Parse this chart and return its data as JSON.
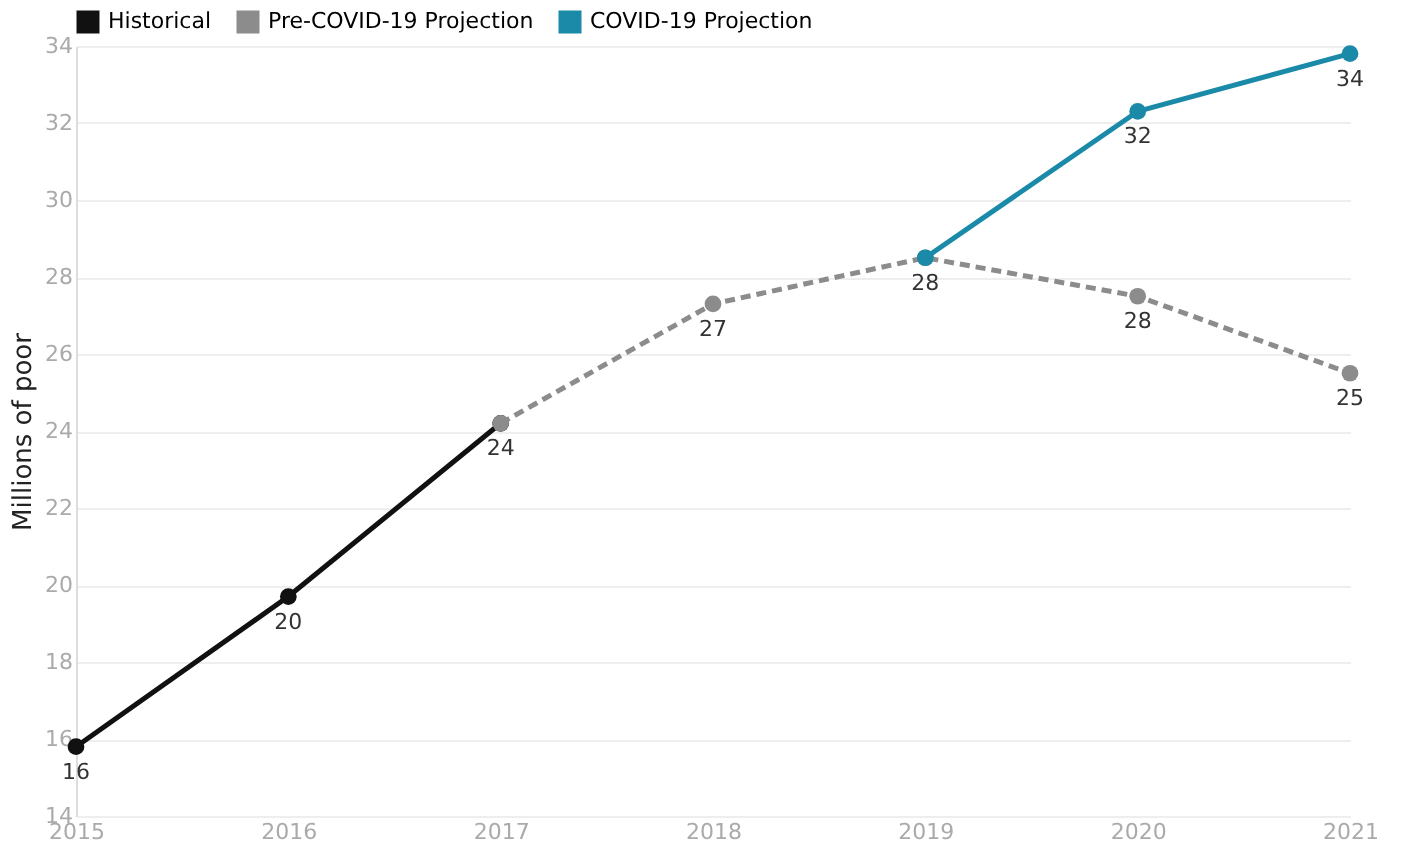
{
  "chart_data": {
    "type": "line",
    "ylabel": "Millions of poor",
    "categories": [
      "2015",
      "2016",
      "2017",
      "2018",
      "2019",
      "2020",
      "2021"
    ],
    "series": [
      {
        "name": "Historical",
        "color": "#111111",
        "line_style": "solid",
        "values": [
          15.8,
          19.7,
          24.2,
          null,
          null,
          null,
          null
        ],
        "value_labels": [
          "16",
          "20",
          "24",
          null,
          null,
          null,
          null
        ]
      },
      {
        "name": "Pre-COVID-19 Projection",
        "color": "#8c8c8c",
        "line_style": "dashed",
        "values": [
          null,
          null,
          24.2,
          27.3,
          28.5,
          27.5,
          25.5
        ],
        "value_labels": [
          null,
          null,
          null,
          "27",
          "28",
          "28",
          "25"
        ]
      },
      {
        "name": "COVID-19 Projection",
        "color": "#1a8aa8",
        "line_style": "solid",
        "values": [
          null,
          null,
          null,
          null,
          28.5,
          32.3,
          33.8
        ],
        "value_labels": [
          null,
          null,
          null,
          null,
          null,
          "32",
          "34"
        ]
      }
    ],
    "ylim": [
      14,
      34
    ],
    "yticks": [
      14,
      16,
      18,
      20,
      22,
      24,
      26,
      28,
      30,
      32,
      34
    ],
    "grid": "y",
    "legend": "top left",
    "marker": "circle"
  }
}
